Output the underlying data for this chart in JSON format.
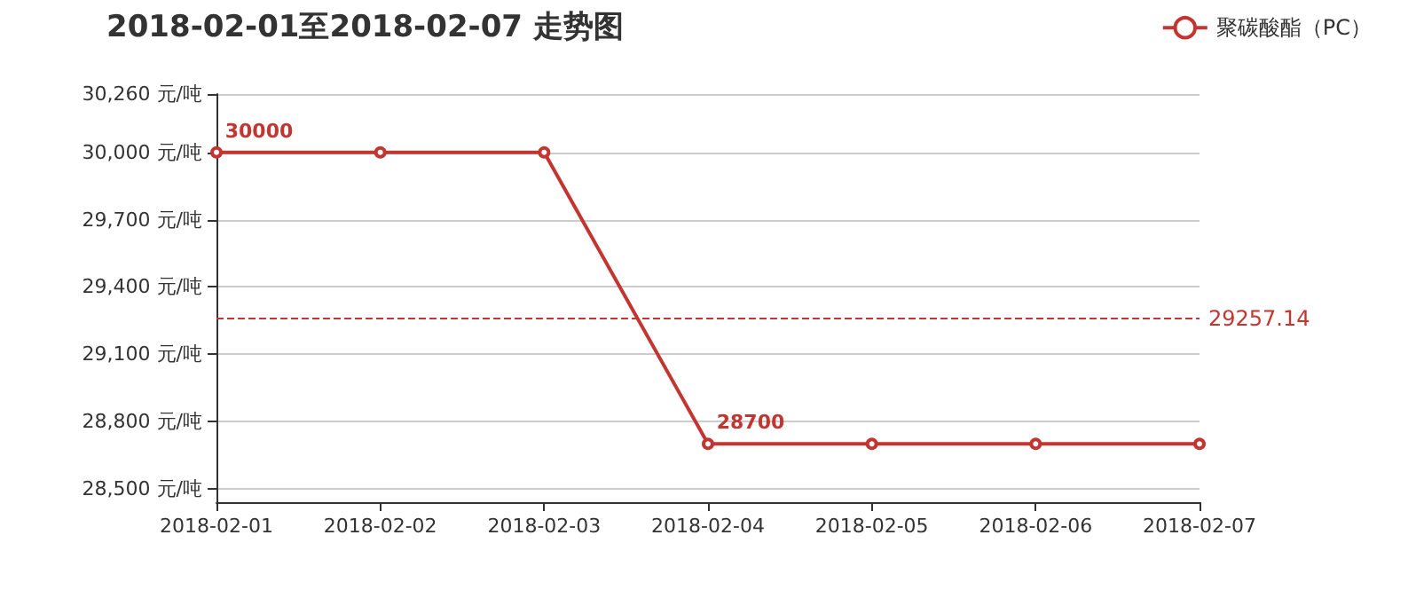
{
  "chart_data": {
    "type": "line",
    "title": "2018-02-01至2018-02-07 走势图",
    "categories": [
      "2018-02-01",
      "2018-02-02",
      "2018-02-03",
      "2018-02-04",
      "2018-02-05",
      "2018-02-06",
      "2018-02-07"
    ],
    "series": [
      {
        "name": "聚碳酸酯（PC）",
        "color": "#c23531",
        "values": [
          30000,
          30000,
          30000,
          28700,
          28700,
          28700,
          28700
        ]
      }
    ],
    "ylim": [
      28440,
      30260
    ],
    "yticks": [
      {
        "value": 28500,
        "label": "28,500 元/吨"
      },
      {
        "value": 28800,
        "label": "28,800 元/吨"
      },
      {
        "value": 29100,
        "label": "29,100 元/吨"
      },
      {
        "value": 29400,
        "label": "29,400 元/吨"
      },
      {
        "value": 29700,
        "label": "29,700 元/吨"
      },
      {
        "value": 30000,
        "label": "30,000 元/吨"
      },
      {
        "value": 30260,
        "label": "30,260 元/吨"
      }
    ],
    "annotations": [
      {
        "text": "30000",
        "x": "2018-02-01",
        "y": 30000
      },
      {
        "text": "28700",
        "x": "2018-02-04",
        "y": 28700
      }
    ],
    "ref_lines": [
      {
        "axis": "y",
        "value": 29257.14,
        "label": "29257.14",
        "color": "#c23531",
        "line_style": "dashed"
      }
    ],
    "grid": "y",
    "legend": "top right",
    "marker": "circle",
    "line_style": "solid"
  }
}
